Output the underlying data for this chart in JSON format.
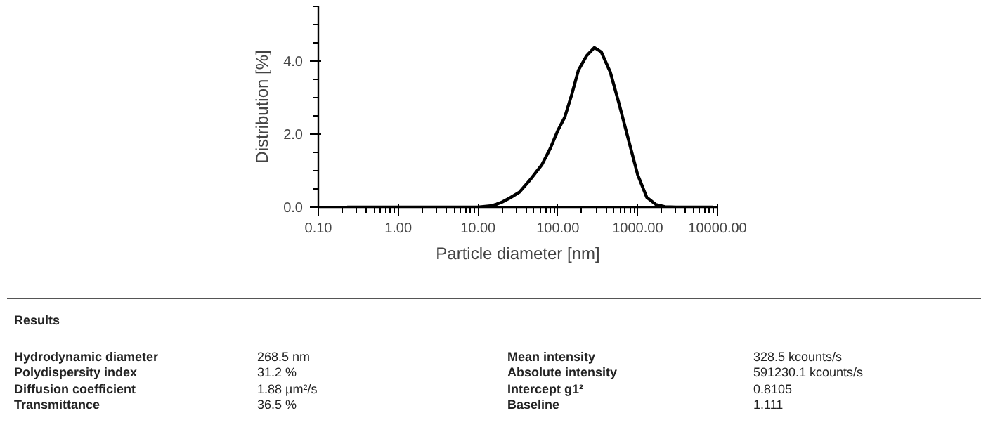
{
  "chart_data": {
    "type": "line",
    "xlabel": "Particle diameter [nm]",
    "ylabel": "Distribution [%]",
    "log": "x",
    "x": [
      0.23,
      1,
      5,
      10,
      15,
      17,
      20,
      25,
      33,
      45,
      63,
      80,
      100,
      122,
      150,
      181,
      230,
      287,
      350,
      454,
      590,
      769,
      1000,
      1300,
      1700,
      2200,
      3000,
      8700
    ],
    "series": [
      {
        "color": "#000000",
        "values": [
          0,
          0,
          0,
          0,
          0.04,
          0.08,
          0.14,
          0.25,
          0.41,
          0.75,
          1.16,
          1.6,
          2.1,
          2.46,
          3.1,
          3.75,
          4.15,
          4.37,
          4.25,
          3.7,
          2.8,
          1.84,
          0.89,
          0.27,
          0.07,
          0.01,
          0,
          0
        ]
      }
    ],
    "xlim": [
      0.1,
      10000
    ],
    "ylim": [
      0,
      5.5
    ],
    "xticks": [
      {
        "value": 0.1,
        "label": "0.10"
      },
      {
        "value": 1,
        "label": "1.00"
      },
      {
        "value": 10,
        "label": "10.00"
      },
      {
        "value": 100,
        "label": "100.00"
      },
      {
        "value": 1000,
        "label": "1000.00"
      },
      {
        "value": 10000,
        "label": "10000.00"
      }
    ],
    "yticks": [
      {
        "value": 0,
        "label": "0.0"
      },
      {
        "value": 2,
        "label": "2.0"
      },
      {
        "value": 4,
        "label": "4.0"
      }
    ],
    "grid": false,
    "marker": "none",
    "line_style": "solid",
    "annotations": [
      "Results",
      "Hydrodynamic diameter",
      "268.5 nm",
      "Mean intensity",
      "328.5 kcounts/s",
      "Polydispersity index",
      "31.2 %",
      "Absolute intensity",
      "591230.1 kcounts/s",
      "Diffusion coefficient",
      "1.88 µm²/s",
      "Intercept g1²",
      "0.8105",
      "Transmittance",
      "36.5 %",
      "Baseline",
      "1.111"
    ]
  }
}
